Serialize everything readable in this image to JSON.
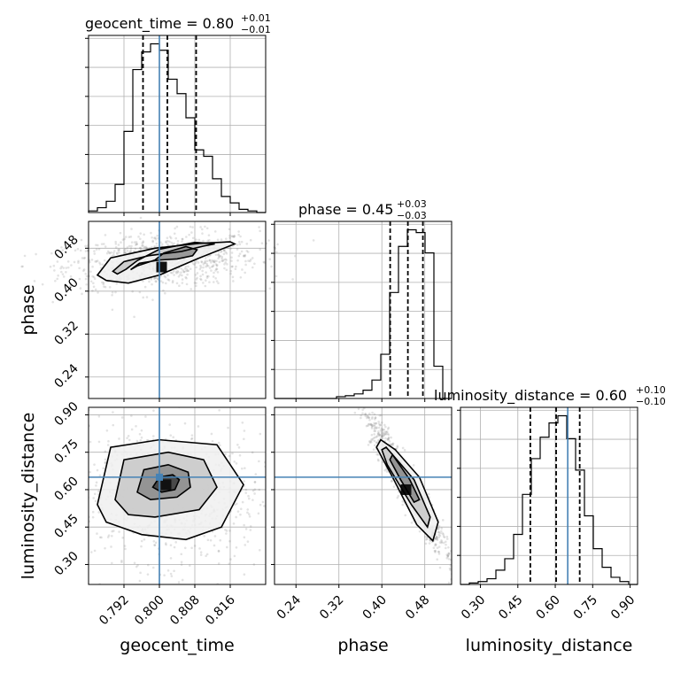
{
  "chart_data": {
    "type": "corner",
    "parameters": [
      {
        "name": "geocent_time",
        "label": "geocent_time",
        "title_main": "geocent_time = 0.80",
        "title_plus": "+0.01",
        "title_minus": "−0.01",
        "range": [
          0.784,
          0.824
        ],
        "ticks": [
          0.792,
          0.8,
          0.808,
          0.816
        ],
        "tick_labels": [
          "0.792",
          "0.800",
          "0.808",
          "0.816"
        ],
        "truth": 0.8,
        "quantiles": [
          0.7963,
          0.8018,
          0.8083
        ],
        "hist_bins": [
          0.784,
          0.786,
          0.788,
          0.79,
          0.792,
          0.794,
          0.796,
          0.798,
          0.8,
          0.802,
          0.804,
          0.806,
          0.808,
          0.81,
          0.812,
          0.814,
          0.816,
          0.818,
          0.82,
          0.822,
          0.824
        ],
        "hist_counts": [
          2,
          6,
          14,
          35,
          101,
          178,
          200,
          210,
          202,
          166,
          148,
          118,
          78,
          70,
          42,
          20,
          12,
          4,
          2,
          0
        ]
      },
      {
        "name": "phase",
        "label": "phase",
        "title_main": "phase = 0.45",
        "title_plus": "+0.03",
        "title_minus": "−0.03",
        "range": [
          0.2,
          0.53
        ],
        "ticks": [
          0.24,
          0.32,
          0.4,
          0.48
        ],
        "tick_labels": [
          "0.24",
          "0.32",
          "0.40",
          "0.48"
        ],
        "truth": null,
        "quantiles": [
          0.4155,
          0.4485,
          0.4765
        ],
        "hist_bins": [
          0.2,
          0.2165,
          0.233,
          0.2495,
          0.266,
          0.2825,
          0.299,
          0.3155,
          0.332,
          0.3485,
          0.365,
          0.3815,
          0.398,
          0.4145,
          0.431,
          0.4475,
          0.464,
          0.4805,
          0.497,
          0.5135,
          0.53
        ],
        "hist_counts": [
          0,
          0,
          0,
          0,
          0,
          0,
          0,
          2,
          3,
          5,
          9,
          20,
          48,
          115,
          165,
          183,
          180,
          158,
          35,
          0
        ]
      },
      {
        "name": "luminosity_distance",
        "label": "luminosity_distance",
        "title_main": "luminosity_distance = 0.60",
        "title_plus": "+0.10",
        "title_minus": "−0.10",
        "range": [
          0.22,
          0.93
        ],
        "ticks": [
          0.3,
          0.45,
          0.6,
          0.75,
          0.9
        ],
        "tick_labels": [
          "0.30",
          "0.45",
          "0.60",
          "0.75",
          "0.90"
        ],
        "truth": 0.65,
        "quantiles": [
          0.5,
          0.6035,
          0.698
        ],
        "hist_bins": [
          0.22,
          0.2555,
          0.291,
          0.3265,
          0.362,
          0.3975,
          0.433,
          0.4685,
          0.504,
          0.5395,
          0.575,
          0.6105,
          0.646,
          0.6815,
          0.717,
          0.7525,
          0.788,
          0.8235,
          0.859,
          0.8945,
          0.93
        ],
        "hist_counts": [
          0,
          1,
          2,
          4,
          10,
          18,
          35,
          63,
          88,
          103,
          113,
          118,
          102,
          80,
          48,
          25,
          12,
          5,
          2,
          0
        ]
      }
    ],
    "pairs": [
      {
        "x": "geocent_time",
        "y": "phase",
        "truth_x": 0.8,
        "truth_y": null,
        "peak": [
          0.8005,
          0.445
        ],
        "contours": [
          [
            [
              0.7935,
              0.44
            ],
            [
              0.7955,
              0.452
            ],
            [
              0.8,
              0.458
            ],
            [
              0.804,
              0.46
            ],
            [
              0.8075,
              0.466
            ],
            [
              0.8085,
              0.477
            ],
            [
              0.806,
              0.483
            ],
            [
              0.801,
              0.471
            ],
            [
              0.799,
              0.458
            ],
            [
              0.795,
              0.447
            ]
          ],
          [
            [
              0.7895,
              0.437
            ],
            [
              0.792,
              0.455
            ],
            [
              0.7975,
              0.466
            ],
            [
              0.805,
              0.474
            ],
            [
              0.81,
              0.484
            ],
            [
              0.8125,
              0.488
            ],
            [
              0.808,
              0.491
            ],
            [
              0.8,
              0.478
            ],
            [
              0.795,
              0.457
            ],
            [
              0.7925,
              0.441
            ],
            [
              0.7905,
              0.432
            ]
          ],
          [
            [
              0.786,
              0.43
            ],
            [
              0.789,
              0.462
            ],
            [
              0.799,
              0.48
            ],
            [
              0.809,
              0.489
            ],
            [
              0.816,
              0.492
            ],
            [
              0.817,
              0.488
            ],
            [
              0.8085,
              0.46
            ],
            [
              0.8,
              0.43
            ],
            [
              0.793,
              0.415
            ],
            [
              0.788,
              0.42
            ]
          ]
        ]
      },
      {
        "x": "geocent_time",
        "y": "luminosity_distance",
        "truth_x": 0.8,
        "truth_y": 0.65,
        "peak": [
          0.8015,
          0.62
        ],
        "contours": [
          [
            [
              0.7985,
              0.61
            ],
            [
              0.8,
              0.65
            ],
            [
              0.803,
              0.66
            ],
            [
              0.8045,
              0.64
            ],
            [
              0.8035,
              0.6
            ],
            [
              0.8005,
              0.59
            ]
          ],
          [
            [
              0.795,
              0.59
            ],
            [
              0.7965,
              0.68
            ],
            [
              0.802,
              0.7
            ],
            [
              0.8065,
              0.67
            ],
            [
              0.807,
              0.61
            ],
            [
              0.804,
              0.57
            ],
            [
              0.798,
              0.56
            ]
          ],
          [
            [
              0.79,
              0.56
            ],
            [
              0.792,
              0.72
            ],
            [
              0.802,
              0.75
            ],
            [
              0.81,
              0.72
            ],
            [
              0.813,
              0.61
            ],
            [
              0.809,
              0.52
            ],
            [
              0.799,
              0.49
            ],
            [
              0.793,
              0.5
            ]
          ],
          [
            [
              0.786,
              0.54
            ],
            [
              0.789,
              0.77
            ],
            [
              0.8,
              0.8
            ],
            [
              0.813,
              0.78
            ],
            [
              0.819,
              0.62
            ],
            [
              0.814,
              0.45
            ],
            [
              0.806,
              0.4
            ],
            [
              0.796,
              0.42
            ],
            [
              0.788,
              0.47
            ]
          ]
        ]
      },
      {
        "x": "phase",
        "y": "luminosity_distance",
        "truth_x": null,
        "truth_y": 0.65,
        "peak": [
          0.445,
          0.6
        ],
        "contours": [
          [
            [
              0.42,
              0.74
            ],
            [
              0.452,
              0.64
            ],
            [
              0.47,
              0.56
            ],
            [
              0.46,
              0.55
            ],
            [
              0.435,
              0.64
            ],
            [
              0.415,
              0.72
            ]
          ],
          [
            [
              0.408,
              0.77
            ],
            [
              0.46,
              0.64
            ],
            [
              0.49,
              0.49
            ],
            [
              0.485,
              0.45
            ],
            [
              0.455,
              0.54
            ],
            [
              0.41,
              0.7
            ],
            [
              0.4,
              0.76
            ]
          ],
          [
            [
              0.398,
              0.8
            ],
            [
              0.425,
              0.76
            ],
            [
              0.47,
              0.65
            ],
            [
              0.505,
              0.47
            ],
            [
              0.495,
              0.395
            ],
            [
              0.465,
              0.46
            ],
            [
              0.42,
              0.65
            ],
            [
              0.39,
              0.77
            ]
          ]
        ]
      }
    ],
    "legend": "none",
    "grid": true
  }
}
